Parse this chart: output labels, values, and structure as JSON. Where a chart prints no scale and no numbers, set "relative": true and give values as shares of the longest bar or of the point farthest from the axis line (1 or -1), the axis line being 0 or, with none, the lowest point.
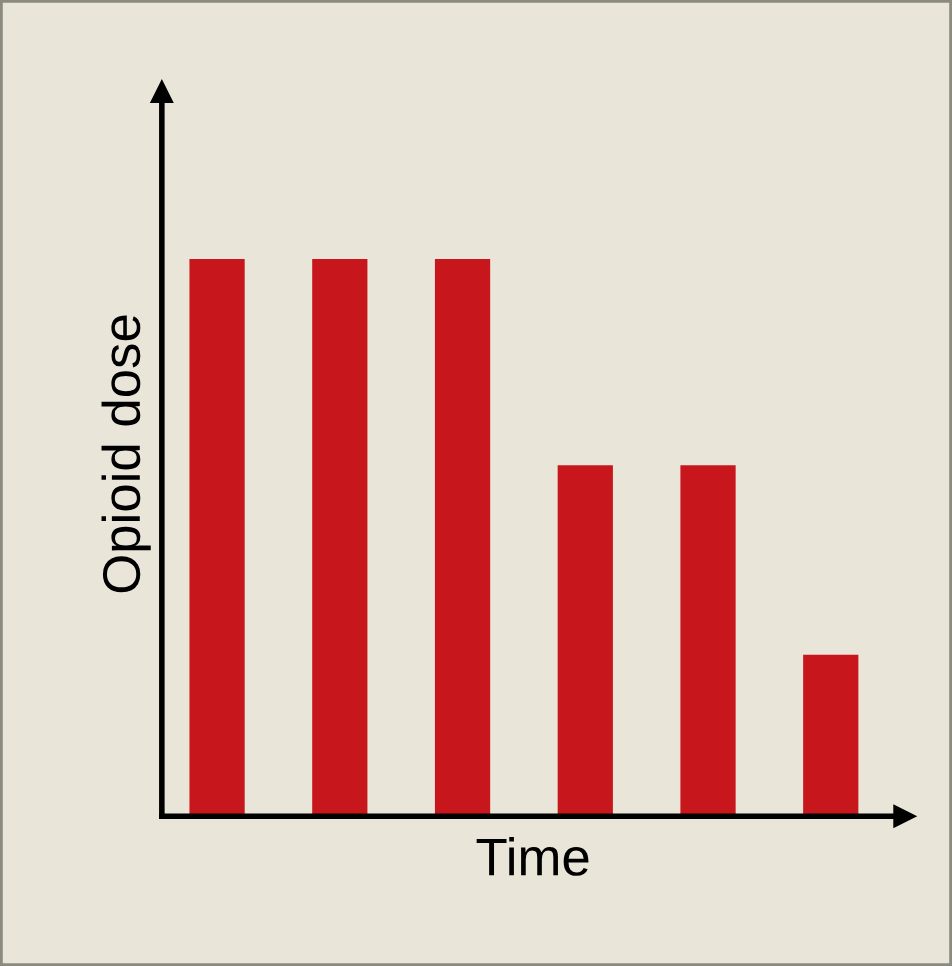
{
  "chart_data": {
    "type": "bar",
    "xlabel": "Time",
    "ylabel": "Opioid dose",
    "relative": true,
    "categories": [
      null,
      null,
      null,
      null,
      null,
      null
    ],
    "series": [
      {
        "color": "#c8161d",
        "values": [
          1,
          1,
          1,
          0.63,
          0.63,
          0.29
        ]
      }
    ],
    "grid": false,
    "legend": false
  }
}
